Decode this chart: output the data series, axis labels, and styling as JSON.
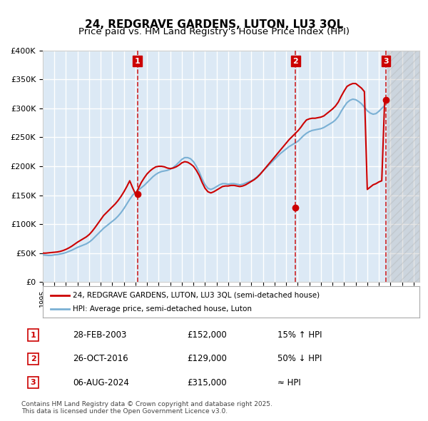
{
  "title": "24, REDGRAVE GARDENS, LUTON, LU3 3QL",
  "subtitle": "Price paid vs. HM Land Registry's House Price Index (HPI)",
  "xlabel": "",
  "ylabel": "",
  "ylim": [
    0,
    400000
  ],
  "yticks": [
    0,
    50000,
    100000,
    150000,
    200000,
    250000,
    300000,
    350000,
    400000
  ],
  "ytick_labels": [
    "£0",
    "£50K",
    "£100K",
    "£150K",
    "£200K",
    "£250K",
    "£300K",
    "£350K",
    "£400K"
  ],
  "xlim_start": 1995.0,
  "xlim_end": 2027.5,
  "background_color": "#dce9f5",
  "plot_bg_color": "#dce9f5",
  "grid_color": "#ffffff",
  "red_color": "#cc0000",
  "blue_color": "#7ab0d4",
  "sale_marker_color": "#cc0000",
  "title_fontsize": 11,
  "subtitle_fontsize": 9.5,
  "sale1_x": 2003.16,
  "sale1_y": 152000,
  "sale1_date": "28-FEB-2003",
  "sale1_price": "£152,000",
  "sale1_hpi": "15% ↑ HPI",
  "sale2_x": 2016.82,
  "sale2_y": 129000,
  "sale2_date": "26-OCT-2016",
  "sale2_price": "£129,000",
  "sale2_hpi": "50% ↓ HPI",
  "sale3_x": 2024.59,
  "sale3_y": 315000,
  "sale3_date": "06-AUG-2024",
  "sale3_price": "£315,000",
  "sale3_hpi": "≈ HPI",
  "legend_red": "24, REDGRAVE GARDENS, LUTON, LU3 3QL (semi-detached house)",
  "legend_blue": "HPI: Average price, semi-detached house, Luton",
  "footer": "Contains HM Land Registry data © Crown copyright and database right 2025.\nThis data is licensed under the Open Government Licence v3.0.",
  "hpi_years": [
    1995.0,
    1995.25,
    1995.5,
    1995.75,
    1996.0,
    1996.25,
    1996.5,
    1996.75,
    1997.0,
    1997.25,
    1997.5,
    1997.75,
    1998.0,
    1998.25,
    1998.5,
    1998.75,
    1999.0,
    1999.25,
    1999.5,
    1999.75,
    2000.0,
    2000.25,
    2000.5,
    2000.75,
    2001.0,
    2001.25,
    2001.5,
    2001.75,
    2002.0,
    2002.25,
    2002.5,
    2002.75,
    2003.0,
    2003.25,
    2003.5,
    2003.75,
    2004.0,
    2004.25,
    2004.5,
    2004.75,
    2005.0,
    2005.25,
    2005.5,
    2005.75,
    2006.0,
    2006.25,
    2006.5,
    2006.75,
    2007.0,
    2007.25,
    2007.5,
    2007.75,
    2008.0,
    2008.25,
    2008.5,
    2008.75,
    2009.0,
    2009.25,
    2009.5,
    2009.75,
    2010.0,
    2010.25,
    2010.5,
    2010.75,
    2011.0,
    2011.25,
    2011.5,
    2011.75,
    2012.0,
    2012.25,
    2012.5,
    2012.75,
    2013.0,
    2013.25,
    2013.5,
    2013.75,
    2014.0,
    2014.25,
    2014.5,
    2014.75,
    2015.0,
    2015.25,
    2015.5,
    2015.75,
    2016.0,
    2016.25,
    2016.5,
    2016.75,
    2017.0,
    2017.25,
    2017.5,
    2017.75,
    2018.0,
    2018.25,
    2018.5,
    2018.75,
    2019.0,
    2019.25,
    2019.5,
    2019.75,
    2020.0,
    2020.25,
    2020.5,
    2020.75,
    2021.0,
    2021.25,
    2021.5,
    2021.75,
    2022.0,
    2022.25,
    2022.5,
    2022.75,
    2023.0,
    2023.25,
    2023.5,
    2023.75,
    2024.0,
    2024.25,
    2024.5
  ],
  "hpi_values": [
    47000,
    46500,
    46000,
    46200,
    47000,
    47500,
    48500,
    49500,
    51000,
    53000,
    55000,
    57500,
    60000,
    62000,
    64000,
    66000,
    69000,
    73000,
    78000,
    83000,
    88000,
    93000,
    97000,
    101000,
    105000,
    109000,
    114000,
    120000,
    127000,
    135000,
    143000,
    150000,
    155000,
    159000,
    163000,
    167000,
    172000,
    177000,
    182000,
    186000,
    189000,
    191000,
    192000,
    193000,
    195000,
    198000,
    202000,
    207000,
    212000,
    215000,
    215000,
    213000,
    208000,
    200000,
    190000,
    178000,
    168000,
    162000,
    160000,
    162000,
    165000,
    168000,
    170000,
    170000,
    169000,
    170000,
    170000,
    169000,
    168000,
    169000,
    171000,
    173000,
    175000,
    178000,
    182000,
    187000,
    192000,
    197000,
    202000,
    207000,
    212000,
    217000,
    222000,
    226000,
    230000,
    234000,
    237000,
    240000,
    243000,
    248000,
    253000,
    257000,
    260000,
    262000,
    263000,
    264000,
    265000,
    267000,
    270000,
    273000,
    276000,
    280000,
    286000,
    295000,
    303000,
    310000,
    314000,
    316000,
    315000,
    312000,
    308000,
    302000,
    296000,
    292000,
    290000,
    291000,
    295000,
    300000,
    305000
  ],
  "red_years": [
    1995.0,
    1995.25,
    1995.5,
    1995.75,
    1996.0,
    1996.25,
    1996.5,
    1996.75,
    1997.0,
    1997.25,
    1997.5,
    1997.75,
    1998.0,
    1998.25,
    1998.5,
    1998.75,
    1999.0,
    1999.25,
    1999.5,
    1999.75,
    2000.0,
    2000.25,
    2000.5,
    2000.75,
    2001.0,
    2001.25,
    2001.5,
    2001.75,
    2002.0,
    2002.25,
    2002.5,
    2002.75,
    2003.0,
    2003.25,
    2003.5,
    2003.75,
    2004.0,
    2004.25,
    2004.5,
    2004.75,
    2005.0,
    2005.25,
    2005.5,
    2005.75,
    2006.0,
    2006.25,
    2006.5,
    2006.75,
    2007.0,
    2007.25,
    2007.5,
    2007.75,
    2008.0,
    2008.25,
    2008.5,
    2008.75,
    2009.0,
    2009.25,
    2009.5,
    2009.75,
    2010.0,
    2010.25,
    2010.5,
    2010.75,
    2011.0,
    2011.25,
    2011.5,
    2011.75,
    2012.0,
    2012.25,
    2012.5,
    2012.75,
    2013.0,
    2013.25,
    2013.5,
    2013.75,
    2014.0,
    2014.25,
    2014.5,
    2014.75,
    2015.0,
    2015.25,
    2015.5,
    2015.75,
    2016.0,
    2016.25,
    2016.5,
    2016.75,
    2017.0,
    2017.25,
    2017.5,
    2017.75,
    2018.0,
    2018.25,
    2018.5,
    2018.75,
    2019.0,
    2019.25,
    2019.5,
    2019.75,
    2020.0,
    2020.25,
    2020.5,
    2020.75,
    2021.0,
    2021.25,
    2021.5,
    2021.75,
    2022.0,
    2022.25,
    2022.5,
    2022.75,
    2023.0,
    2023.25,
    2023.5,
    2023.75,
    2024.0,
    2024.25,
    2024.5
  ],
  "red_values": [
    50000,
    50000,
    50500,
    51000,
    51500,
    52000,
    53000,
    54500,
    56500,
    59000,
    62000,
    65500,
    69000,
    72000,
    75000,
    78000,
    82000,
    87500,
    94000,
    101000,
    108000,
    115000,
    120000,
    125000,
    130000,
    135000,
    141000,
    148000,
    156000,
    165000,
    175000,
    163000,
    152000,
    162000,
    172000,
    180000,
    187000,
    192000,
    196000,
    199000,
    200000,
    200000,
    199000,
    197000,
    196000,
    197000,
    199000,
    202000,
    206000,
    208000,
    207000,
    204000,
    200000,
    193000,
    184000,
    172000,
    162000,
    156000,
    154000,
    156000,
    159000,
    162000,
    165000,
    166000,
    166000,
    167000,
    167000,
    166000,
    165000,
    166000,
    168000,
    171000,
    174000,
    177000,
    181000,
    186000,
    192000,
    198000,
    204000,
    210000,
    216000,
    222000,
    228000,
    234000,
    240000,
    246000,
    251000,
    256000,
    261000,
    267000,
    274000,
    280000,
    282000,
    283000,
    283000,
    284000,
    285000,
    287000,
    291000,
    295000,
    299000,
    304000,
    311000,
    321000,
    330000,
    338000,
    341000,
    343000,
    343000,
    339000,
    335000,
    329000,
    160000,
    164000,
    168000,
    170000,
    173000,
    175000,
    315000
  ]
}
